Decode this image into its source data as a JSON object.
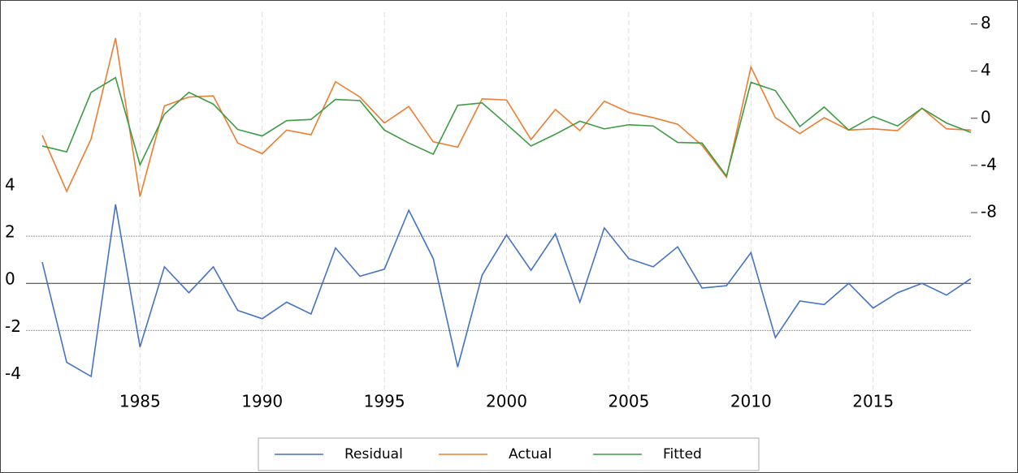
{
  "chart_data": {
    "type": "line",
    "x": [
      1981,
      1982,
      1983,
      1984,
      1985,
      1986,
      1987,
      1988,
      1989,
      1990,
      1991,
      1992,
      1993,
      1994,
      1995,
      1996,
      1997,
      1998,
      1999,
      2000,
      2001,
      2002,
      2003,
      2004,
      2005,
      2006,
      2007,
      2008,
      2009,
      2010,
      2011,
      2012,
      2013,
      2014,
      2015,
      2016,
      2017,
      2018,
      2019
    ],
    "xlim": [
      1981,
      2019
    ],
    "xticks": [
      1985,
      1990,
      1995,
      2000,
      2005,
      2010,
      2015
    ],
    "ylim": [
      -4.5,
      11.5
    ],
    "yticks": [
      -4,
      -2,
      0,
      2,
      4
    ],
    "y2lim": [
      -23,
      9
    ],
    "y2ticks": [
      -8,
      -4,
      0,
      4,
      8
    ],
    "grid": true,
    "legend": "bottom",
    "series": [
      {
        "name": "Residual",
        "color": "#4472c4",
        "axis": "y",
        "values": [
          0.9,
          -3.35,
          -3.95,
          3.35,
          -2.7,
          0.7,
          -0.4,
          0.7,
          -1.15,
          -1.5,
          -0.8,
          -1.3,
          1.5,
          0.3,
          0.6,
          3.1,
          1.05,
          -3.55,
          0.35,
          2.05,
          0.55,
          2.1,
          -0.8,
          2.35,
          1.05,
          0.7,
          1.55,
          -0.2,
          -0.1,
          1.3,
          -2.3,
          -0.75,
          -0.9,
          0,
          -1.05,
          -0.4,
          0,
          -0.5,
          0.2
        ]
      },
      {
        "name": "Actual",
        "color": "#ed7d31",
        "axis": "y2",
        "values": [
          -1.45,
          -6.2,
          -1.75,
          6.8,
          -6.65,
          1.05,
          1.8,
          1.9,
          -2.1,
          -3.0,
          -1.0,
          -1.4,
          3.1,
          1.8,
          -0.4,
          1.0,
          -2.0,
          -2.45,
          1.65,
          1.55,
          -1.8,
          0.75,
          -1.05,
          1.45,
          0.5,
          0.05,
          -0.5,
          -2.3,
          -5.0,
          4.35,
          0.05,
          -1.3,
          0.05,
          -1.0,
          -0.9,
          -1.05,
          0.85,
          -0.9,
          -1.0
        ]
      },
      {
        "name": "Fitted",
        "color": "#3e9b43",
        "axis": "y2",
        "values": [
          -2.35,
          -2.85,
          2.2,
          3.45,
          -3.95,
          0.35,
          2.2,
          1.2,
          -0.95,
          -1.5,
          -0.2,
          -0.1,
          1.6,
          1.5,
          -1.0,
          -2.1,
          -3.05,
          1.1,
          1.3,
          -0.5,
          -2.35,
          -1.35,
          -0.25,
          -0.9,
          -0.55,
          -0.65,
          -2.05,
          -2.1,
          -4.9,
          3.05,
          2.35,
          -0.7,
          0.95,
          -1.0,
          0.15,
          -0.65,
          0.85,
          -0.4,
          -1.2
        ]
      }
    ]
  }
}
